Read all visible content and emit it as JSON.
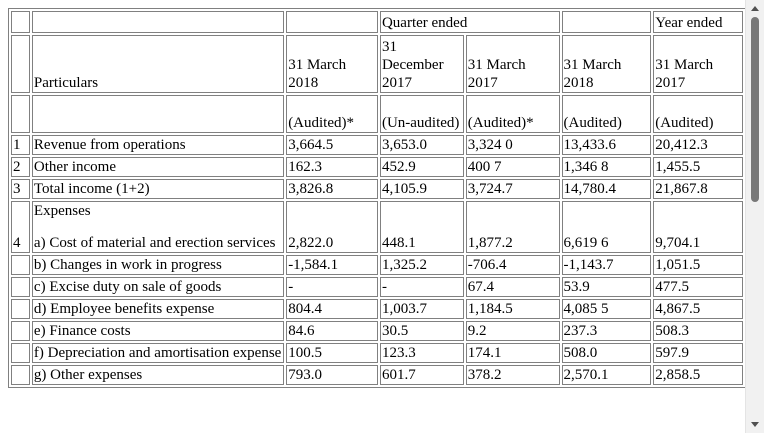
{
  "header": {
    "quarter_ended": "Quarter ended",
    "year_ended": "Year ended",
    "particulars": "Particulars",
    "periods": [
      "31 March 2018",
      "31 December 2017",
      "31 March 2017",
      "31 March 2018",
      "31 March 2017"
    ],
    "audit_status": [
      "(Audited)*",
      "(Un-audited)",
      "(Audited)*",
      "(Audited)",
      "(Audited)"
    ]
  },
  "rows": [
    {
      "no": "1",
      "label": "Revenue from operations",
      "values": [
        "3,664.5",
        "3,653.0",
        "3,324 0",
        "13,433.6",
        "20,412.3"
      ]
    },
    {
      "no": "2",
      "label": "Other income",
      "values": [
        "162.3",
        "452.9",
        "400 7",
        "1,346 8",
        "1,455.5"
      ]
    },
    {
      "no": "3",
      "label": "Total income (1+2)",
      "values": [
        "3,826.8",
        "4,105.9",
        "3,724.7",
        "14,780.4",
        "21,867.8"
      ]
    },
    {
      "no": "4",
      "section": "Expenses",
      "label": "a) Cost of material and erection services",
      "values": [
        "2,822.0",
        "448.1",
        "1,877.2",
        "6,619 6",
        "9,704.1"
      ]
    },
    {
      "no": "",
      "label": "b) Changes in work in progress",
      "values": [
        "-1,584.1",
        "1,325.2",
        "-706.4",
        "-1,143.7",
        "1,051.5"
      ]
    },
    {
      "no": "",
      "label": "c) Excise duty on sale of goods",
      "values": [
        "-",
        "-",
        "67.4",
        "53.9",
        "477.5"
      ]
    },
    {
      "no": "",
      "label": "d) Employee benefits expense",
      "values": [
        "804.4",
        "1,003.7",
        "1,184.5",
        "4,085 5",
        "4,867.5"
      ]
    },
    {
      "no": "",
      "label": "e) Finance costs",
      "values": [
        "84.6",
        "30.5",
        "9.2",
        "237.3",
        "508.3"
      ]
    },
    {
      "no": "",
      "label": "f) Depreciation and amortisation expense",
      "values": [
        "100.5",
        "123.3",
        "174.1",
        "508.0",
        "597.9"
      ]
    },
    {
      "no": "",
      "label": "g) Other expenses",
      "values": [
        "793.0",
        "601.7",
        "378.2",
        "2,570.1",
        "2,858.5"
      ]
    }
  ]
}
